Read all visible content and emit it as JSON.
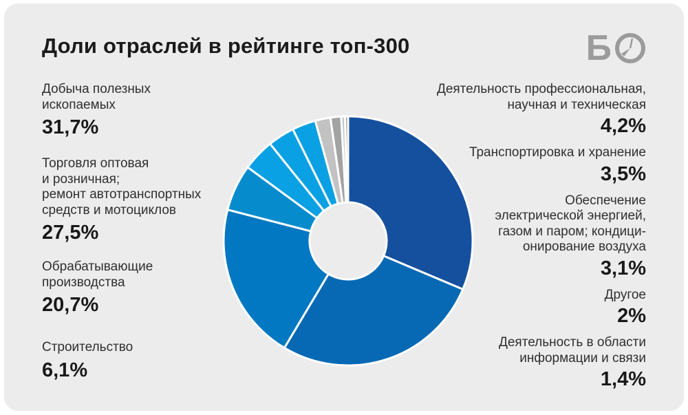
{
  "title": "Доли отраслей в рейтинге топ-300",
  "logo": {
    "letter_b": "Б",
    "icon": "clock-in-circle"
  },
  "left_legend": [
    {
      "label": "Добыча полезных\nископаемых",
      "value": "31,7%"
    },
    {
      "label": "Торговля оптовая\nи розничная;\nремонт автотранспортных\nсредств и мотоциклов",
      "value": "27,5%"
    },
    {
      "label": "Обрабатывающие\nпроизводства",
      "value": "20,7%"
    },
    {
      "label": "Строительство",
      "value": "6,1%"
    }
  ],
  "right_legend": [
    {
      "label": "Деятельность профессиональная,\nнаучная и техническая",
      "value": "4,2%"
    },
    {
      "label": "Транспортировка и хранение",
      "value": "3,5%"
    },
    {
      "label": "Обеспечение\nэлектрической энергией,\nгазом и паром; кондици-\nонирование воздуха",
      "value": "3,1%"
    },
    {
      "label": "Другое",
      "value": "2%"
    },
    {
      "label": "Деятельность в области\nинформации и связи",
      "value": "1,4%"
    }
  ],
  "chart_data": {
    "type": "pie",
    "donut": true,
    "title": "Доли отраслей в рейтинге топ-300",
    "legend_position": "left and right of chart",
    "categories": [
      "Добыча полезных ископаемых",
      "Торговля оптовая и розничная; ремонт автотранспортных средств и мотоциклов",
      "Обрабатывающие производства",
      "Строительство",
      "Деятельность профессиональная, научная и техническая",
      "Транспортировка и хранение",
      "Обеспечение электрической энергией, газом и паром; кондиционирование воздуха",
      "Другое",
      "Деятельность в области информации и связи"
    ],
    "values": [
      31.7,
      27.5,
      20.7,
      6.1,
      4.2,
      3.5,
      3.1,
      2,
      1.4
    ],
    "value_labels": [
      "31,7%",
      "27,5%",
      "20,7%",
      "6,1%",
      "4,2%",
      "3,5%",
      "3,1%",
      "2%",
      "1,4%"
    ],
    "colors": [
      "#15509f",
      "#0769b4",
      "#0378c2",
      "#068ccd",
      "#0aa0e4",
      "#0aa0e4",
      "#0aa0e4",
      "#bdbdbd",
      "#a6a6a6"
    ],
    "render_segments": [
      {
        "name": "mining",
        "value": 31.7,
        "color": "#15509f"
      },
      {
        "name": "trade",
        "value": 27.5,
        "color": "#0769b4"
      },
      {
        "name": "manufacturing",
        "value": 20.7,
        "color": "#0378c2"
      },
      {
        "name": "construction",
        "value": 6.1,
        "color": "#068ccd"
      },
      {
        "name": "professional",
        "value": 4.2,
        "color": "#0aa0e4"
      },
      {
        "name": "transport",
        "value": 3.5,
        "color": "#0aa0e4"
      },
      {
        "name": "energy",
        "value": 3.1,
        "color": "#0aa0e4"
      },
      {
        "name": "other",
        "value": 2.0,
        "color": "#c2c2c2"
      },
      {
        "name": "information",
        "value": 1.4,
        "color": "#a3a3a3"
      },
      {
        "name": "sliver-1",
        "value": 0.5,
        "color": "#c6c6c6"
      },
      {
        "name": "sliver-2",
        "value": 0.4,
        "color": "#9d9d9d"
      }
    ],
    "background": "#ececec",
    "separator_color": "#ffffff"
  }
}
